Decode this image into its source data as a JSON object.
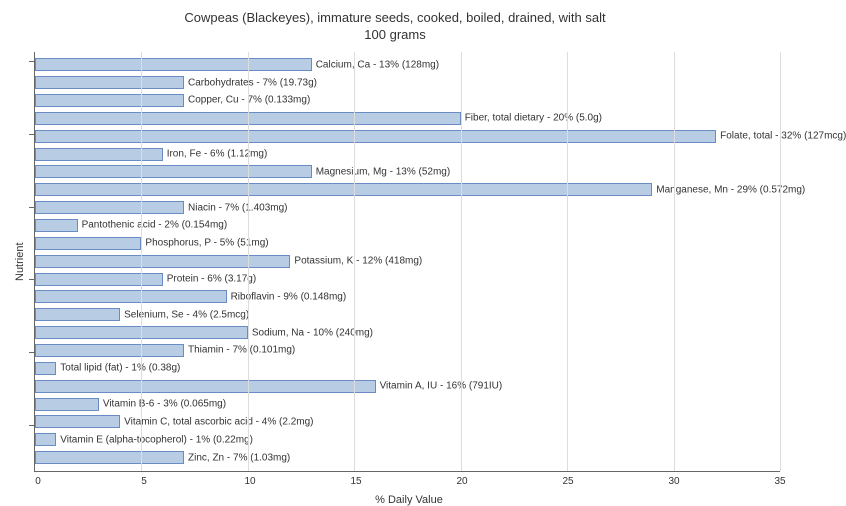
{
  "title_line1": "Cowpeas (Blackeyes), immature seeds, cooked, boiled, drained, with salt",
  "title_line2": "100 grams",
  "ylabel": "Nutrient",
  "xlabel": "% Daily Value",
  "xlim": [
    0,
    35
  ],
  "xtick_step": 5,
  "xticks": [
    0,
    5,
    10,
    15,
    20,
    25,
    30,
    35
  ],
  "bar_color": "#b8cce4",
  "bar_border_color": "#6a8cc4",
  "grid_color": "#dddddd",
  "background_color": "#ffffff",
  "text_color": "#333333",
  "label_fontsize": 10,
  "axis_fontsize": 11,
  "title_fontsize": 13,
  "type": "bar-horizontal",
  "nutrients": [
    {
      "label": "Calcium, Ca - 13% (128mg)",
      "value": 13
    },
    {
      "label": "Carbohydrates - 7% (19.73g)",
      "value": 7
    },
    {
      "label": "Copper, Cu - 7% (0.133mg)",
      "value": 7
    },
    {
      "label": "Fiber, total dietary - 20% (5.0g)",
      "value": 20
    },
    {
      "label": "Folate, total - 32% (127mcg)",
      "value": 32
    },
    {
      "label": "Iron, Fe - 6% (1.12mg)",
      "value": 6
    },
    {
      "label": "Magnesium, Mg - 13% (52mg)",
      "value": 13
    },
    {
      "label": "Manganese, Mn - 29% (0.572mg)",
      "value": 29
    },
    {
      "label": "Niacin - 7% (1.403mg)",
      "value": 7
    },
    {
      "label": "Pantothenic acid - 2% (0.154mg)",
      "value": 2
    },
    {
      "label": "Phosphorus, P - 5% (51mg)",
      "value": 5
    },
    {
      "label": "Potassium, K - 12% (418mg)",
      "value": 12
    },
    {
      "label": "Protein - 6% (3.17g)",
      "value": 6
    },
    {
      "label": "Riboflavin - 9% (0.148mg)",
      "value": 9
    },
    {
      "label": "Selenium, Se - 4% (2.5mcg)",
      "value": 4
    },
    {
      "label": "Sodium, Na - 10% (240mg)",
      "value": 10
    },
    {
      "label": "Thiamin - 7% (0.101mg)",
      "value": 7
    },
    {
      "label": "Total lipid (fat) - 1% (0.38g)",
      "value": 1
    },
    {
      "label": "Vitamin A, IU - 16% (791IU)",
      "value": 16
    },
    {
      "label": "Vitamin B-6 - 3% (0.065mg)",
      "value": 3
    },
    {
      "label": "Vitamin C, total ascorbic acid - 4% (2.2mg)",
      "value": 4
    },
    {
      "label": "Vitamin E (alpha-tocopherol) - 1% (0.22mg)",
      "value": 1
    },
    {
      "label": "Zinc, Zn - 7% (1.03mg)",
      "value": 7
    }
  ],
  "tick_group_interval": 4
}
